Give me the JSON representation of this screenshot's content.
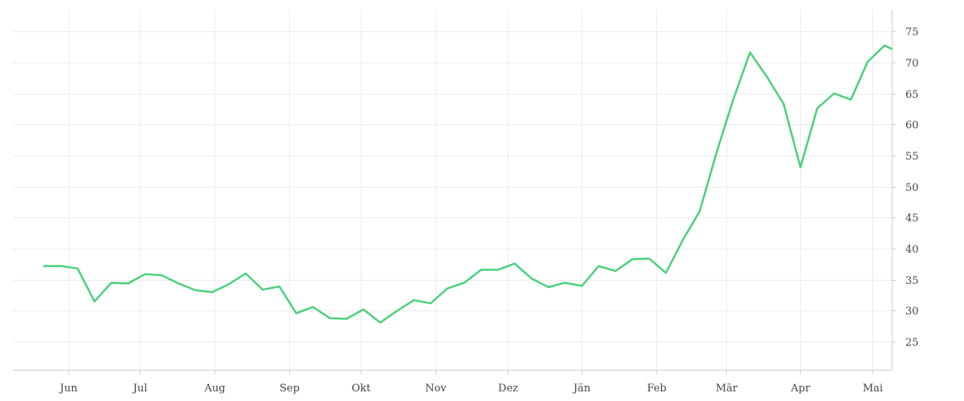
{
  "chart_data": {
    "type": "line",
    "title": "",
    "xlabel": "",
    "ylabel": "",
    "x_tick_labels": [
      "Jun",
      "Jul",
      "Aug",
      "Sep",
      "Okt",
      "Nov",
      "Dez",
      "Jän",
      "Feb",
      "Mär",
      "Apr",
      "Mai"
    ],
    "y_ticks": [
      25,
      30,
      35,
      40,
      45,
      50,
      55,
      60,
      65,
      70,
      75
    ],
    "ylim": [
      20.5,
      78.5
    ],
    "grid": true,
    "y_axis_position": "right",
    "series": [
      {
        "color": "#4cd07d",
        "x": [
          "2015-05-22",
          "2015-05-29",
          "2015-06-05",
          "2015-06-12",
          "2015-06-19",
          "2015-06-26",
          "2015-07-03",
          "2015-07-10",
          "2015-07-17",
          "2015-07-24",
          "2015-07-31",
          "2015-08-07",
          "2015-08-14",
          "2015-08-21",
          "2015-08-28",
          "2015-09-04",
          "2015-09-11",
          "2015-09-18",
          "2015-09-25",
          "2015-10-02",
          "2015-10-09",
          "2015-10-16",
          "2015-10-23",
          "2015-10-30",
          "2015-11-06",
          "2015-11-13",
          "2015-11-20",
          "2015-11-27",
          "2015-12-04",
          "2015-12-11",
          "2015-12-18",
          "2015-12-25",
          "2016-01-01",
          "2016-01-08",
          "2016-01-15",
          "2016-01-22",
          "2016-01-29",
          "2016-02-05",
          "2016-02-12",
          "2016-02-19",
          "2016-02-26",
          "2016-03-04",
          "2016-03-11",
          "2016-03-18",
          "2016-03-25",
          "2016-04-01",
          "2016-04-08",
          "2016-04-15",
          "2016-04-22",
          "2016-04-29",
          "2016-05-06",
          "2016-05-09"
        ],
        "values": [
          37.2,
          37.2,
          36.8,
          31.5,
          34.5,
          34.4,
          35.9,
          35.7,
          34.4,
          33.3,
          33.0,
          34.3,
          36.0,
          33.4,
          33.9,
          29.6,
          30.6,
          28.8,
          28.7,
          30.2,
          28.1,
          30.0,
          31.7,
          31.2,
          33.6,
          34.5,
          36.6,
          36.6,
          37.6,
          35.2,
          33.8,
          34.5,
          34.0,
          37.2,
          36.4,
          38.3,
          38.4,
          36.1,
          41.4,
          46.0,
          55.4,
          64.0,
          71.6,
          67.7,
          63.3,
          53.1,
          62.6,
          65.0,
          64.0,
          70.1,
          72.7,
          72.2
        ]
      }
    ]
  }
}
